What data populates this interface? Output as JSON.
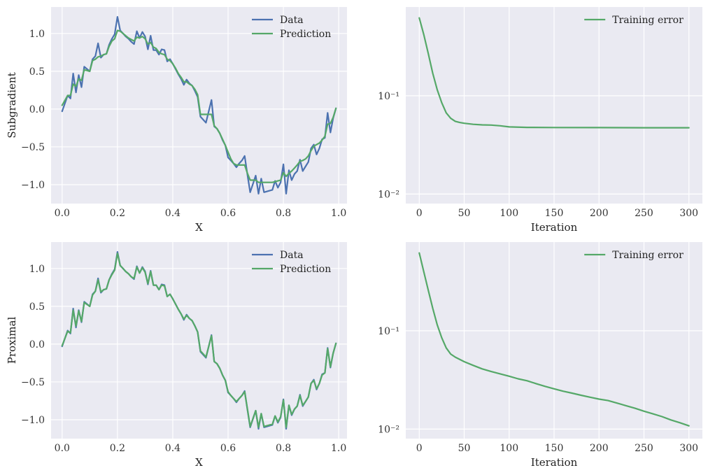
{
  "colors": {
    "background": "#eaeaf2",
    "grid": "#ffffff",
    "data": "#4c72b0",
    "prediction": "#55a868",
    "training": "#55a868"
  },
  "chart_data": [
    {
      "type": "line",
      "panel": "top-left",
      "xlabel": "X",
      "ylabel": "Subgradient",
      "xlim": [
        -0.04,
        1.03
      ],
      "ylim": [
        -1.25,
        1.35
      ],
      "xticks": [
        0.0,
        0.2,
        0.4,
        0.6,
        0.8,
        1.0
      ],
      "xtick_labels": [
        "0.0",
        "0.2",
        "0.4",
        "0.6",
        "0.8",
        "1.0"
      ],
      "yticks": [
        -1.0,
        -0.5,
        0.0,
        0.5,
        1.0
      ],
      "ytick_labels": [
        "−1.0",
        "−0.5",
        "0.0",
        "0.5",
        "1.0"
      ],
      "legend": "top-right",
      "grid": true,
      "series": [
        {
          "name": "Data",
          "color": "#4c72b0",
          "x": [
            0.0,
            0.02,
            0.03,
            0.04,
            0.05,
            0.06,
            0.07,
            0.08,
            0.1,
            0.11,
            0.12,
            0.13,
            0.14,
            0.15,
            0.16,
            0.17,
            0.18,
            0.19,
            0.2,
            0.21,
            0.22,
            0.23,
            0.24,
            0.25,
            0.26,
            0.27,
            0.28,
            0.29,
            0.3,
            0.31,
            0.32,
            0.33,
            0.34,
            0.35,
            0.36,
            0.37,
            0.38,
            0.39,
            0.4,
            0.41,
            0.42,
            0.43,
            0.44,
            0.45,
            0.46,
            0.47,
            0.48,
            0.49,
            0.5,
            0.52,
            0.54,
            0.55,
            0.56,
            0.57,
            0.58,
            0.59,
            0.6,
            0.61,
            0.62,
            0.63,
            0.64,
            0.65,
            0.66,
            0.67,
            0.68,
            0.7,
            0.71,
            0.72,
            0.73,
            0.74,
            0.75,
            0.76,
            0.77,
            0.78,
            0.79,
            0.8,
            0.81,
            0.82,
            0.83,
            0.84,
            0.85,
            0.86,
            0.87,
            0.88,
            0.89,
            0.9,
            0.91,
            0.92,
            0.93,
            0.94,
            0.95,
            0.96,
            0.97,
            0.98,
            0.99
          ],
          "y": [
            -0.03,
            0.18,
            0.14,
            0.47,
            0.22,
            0.45,
            0.29,
            0.56,
            0.5,
            0.66,
            0.7,
            0.87,
            0.68,
            0.72,
            0.73,
            0.85,
            0.93,
            0.99,
            1.22,
            1.04,
            1.0,
            0.96,
            0.93,
            0.89,
            0.86,
            1.03,
            0.94,
            1.02,
            0.96,
            0.79,
            0.97,
            0.78,
            0.78,
            0.72,
            0.79,
            0.78,
            0.63,
            0.66,
            0.6,
            0.53,
            0.46,
            0.4,
            0.32,
            0.39,
            0.34,
            0.31,
            0.24,
            0.16,
            -0.1,
            -0.18,
            0.12,
            -0.23,
            -0.26,
            -0.32,
            -0.41,
            -0.48,
            -0.64,
            -0.68,
            -0.72,
            -0.77,
            -0.72,
            -0.68,
            -0.62,
            -0.87,
            -1.1,
            -0.88,
            -1.12,
            -0.92,
            -1.1,
            -1.09,
            -1.08,
            -1.07,
            -0.95,
            -1.04,
            -0.97,
            -0.73,
            -1.12,
            -0.81,
            -0.94,
            -0.86,
            -0.82,
            -0.67,
            -0.82,
            -0.76,
            -0.7,
            -0.52,
            -0.47,
            -0.6,
            -0.52,
            -0.4,
            -0.38,
            -0.05,
            -0.31,
            -0.12,
            0.01
          ]
        },
        {
          "name": "Prediction",
          "color": "#55a868",
          "x": [
            0.0,
            0.02,
            0.03,
            0.04,
            0.05,
            0.06,
            0.07,
            0.08,
            0.1,
            0.11,
            0.12,
            0.13,
            0.14,
            0.15,
            0.16,
            0.17,
            0.18,
            0.19,
            0.2,
            0.21,
            0.22,
            0.23,
            0.24,
            0.25,
            0.26,
            0.27,
            0.28,
            0.29,
            0.3,
            0.31,
            0.32,
            0.33,
            0.34,
            0.35,
            0.36,
            0.37,
            0.38,
            0.39,
            0.4,
            0.41,
            0.42,
            0.43,
            0.44,
            0.45,
            0.46,
            0.47,
            0.48,
            0.49,
            0.5,
            0.52,
            0.54,
            0.55,
            0.56,
            0.57,
            0.58,
            0.59,
            0.6,
            0.61,
            0.62,
            0.63,
            0.64,
            0.65,
            0.66,
            0.67,
            0.68,
            0.7,
            0.71,
            0.72,
            0.73,
            0.74,
            0.75,
            0.76,
            0.77,
            0.78,
            0.79,
            0.8,
            0.81,
            0.82,
            0.83,
            0.84,
            0.85,
            0.86,
            0.87,
            0.88,
            0.89,
            0.9,
            0.91,
            0.92,
            0.93,
            0.94,
            0.95,
            0.96,
            0.97,
            0.98,
            0.99
          ],
          "y": [
            0.05,
            0.18,
            0.18,
            0.33,
            0.3,
            0.4,
            0.38,
            0.52,
            0.5,
            0.64,
            0.66,
            0.69,
            0.7,
            0.72,
            0.73,
            0.83,
            0.9,
            0.93,
            1.04,
            1.03,
            1.0,
            0.97,
            0.94,
            0.92,
            0.9,
            0.95,
            0.94,
            0.96,
            0.93,
            0.86,
            0.88,
            0.82,
            0.8,
            0.75,
            0.73,
            0.72,
            0.66,
            0.64,
            0.6,
            0.54,
            0.47,
            0.42,
            0.36,
            0.36,
            0.33,
            0.31,
            0.26,
            0.19,
            -0.07,
            -0.07,
            -0.07,
            -0.22,
            -0.26,
            -0.32,
            -0.4,
            -0.48,
            -0.57,
            -0.66,
            -0.72,
            -0.74,
            -0.74,
            -0.74,
            -0.74,
            -0.85,
            -0.94,
            -0.94,
            -0.97,
            -0.97,
            -0.97,
            -0.97,
            -0.97,
            -0.97,
            -0.96,
            -0.95,
            -0.94,
            -0.84,
            -0.89,
            -0.85,
            -0.82,
            -0.78,
            -0.74,
            -0.69,
            -0.68,
            -0.66,
            -0.62,
            -0.55,
            -0.49,
            -0.47,
            -0.45,
            -0.41,
            -0.36,
            -0.2,
            -0.19,
            -0.11,
            0.01
          ]
        }
      ]
    },
    {
      "type": "line",
      "panel": "top-right",
      "xlabel": "Iteration",
      "ylabel": "",
      "yscale": "log",
      "xlim": [
        -15,
        315
      ],
      "ylim": [
        0.008,
        0.8
      ],
      "xticks": [
        0,
        50,
        100,
        150,
        200,
        250,
        300
      ],
      "xtick_labels": [
        "0",
        "50",
        "100",
        "150",
        "200",
        "250",
        "300"
      ],
      "yticks": [
        0.01,
        0.1
      ],
      "ytick_labels": [
        "10⁻²",
        "10⁻¹"
      ],
      "legend": "top-right",
      "grid": true,
      "series": [
        {
          "name": "Training error",
          "color": "#55a868",
          "x": [
            0,
            5,
            10,
            15,
            20,
            25,
            30,
            35,
            40,
            45,
            50,
            60,
            70,
            80,
            90,
            100,
            120,
            150,
            200,
            250,
            300
          ],
          "y": [
            0.62,
            0.42,
            0.27,
            0.17,
            0.115,
            0.085,
            0.067,
            0.059,
            0.055,
            0.0535,
            0.0525,
            0.0512,
            0.0506,
            0.0503,
            0.0495,
            0.0482,
            0.0477,
            0.0475,
            0.0474,
            0.0473,
            0.0473
          ]
        }
      ]
    },
    {
      "type": "line",
      "panel": "bottom-left",
      "xlabel": "X",
      "ylabel": "Proximal",
      "xlim": [
        -0.04,
        1.03
      ],
      "ylim": [
        -1.25,
        1.35
      ],
      "xticks": [
        0.0,
        0.2,
        0.4,
        0.6,
        0.8,
        1.0
      ],
      "xtick_labels": [
        "0.0",
        "0.2",
        "0.4",
        "0.6",
        "0.8",
        "1.0"
      ],
      "yticks": [
        -1.0,
        -0.5,
        0.0,
        0.5,
        1.0
      ],
      "ytick_labels": [
        "−1.0",
        "−0.5",
        "0.0",
        "0.5",
        "1.0"
      ],
      "legend": "top-right",
      "grid": true,
      "series": [
        {
          "name": "Data",
          "color": "#4c72b0",
          "x": [
            0.0,
            0.02,
            0.03,
            0.04,
            0.05,
            0.06,
            0.07,
            0.08,
            0.1,
            0.11,
            0.12,
            0.13,
            0.14,
            0.15,
            0.16,
            0.17,
            0.18,
            0.19,
            0.2,
            0.21,
            0.22,
            0.23,
            0.24,
            0.25,
            0.26,
            0.27,
            0.28,
            0.29,
            0.3,
            0.31,
            0.32,
            0.33,
            0.34,
            0.35,
            0.36,
            0.37,
            0.38,
            0.39,
            0.4,
            0.41,
            0.42,
            0.43,
            0.44,
            0.45,
            0.46,
            0.47,
            0.48,
            0.49,
            0.5,
            0.52,
            0.54,
            0.55,
            0.56,
            0.57,
            0.58,
            0.59,
            0.6,
            0.61,
            0.62,
            0.63,
            0.64,
            0.65,
            0.66,
            0.67,
            0.68,
            0.7,
            0.71,
            0.72,
            0.73,
            0.74,
            0.75,
            0.76,
            0.77,
            0.78,
            0.79,
            0.8,
            0.81,
            0.82,
            0.83,
            0.84,
            0.85,
            0.86,
            0.87,
            0.88,
            0.89,
            0.9,
            0.91,
            0.92,
            0.93,
            0.94,
            0.95,
            0.96,
            0.97,
            0.98,
            0.99
          ],
          "y": [
            -0.03,
            0.18,
            0.14,
            0.47,
            0.22,
            0.45,
            0.29,
            0.56,
            0.5,
            0.66,
            0.7,
            0.87,
            0.68,
            0.72,
            0.73,
            0.85,
            0.93,
            0.99,
            1.22,
            1.04,
            1.0,
            0.96,
            0.93,
            0.89,
            0.86,
            1.03,
            0.94,
            1.02,
            0.96,
            0.79,
            0.97,
            0.78,
            0.78,
            0.72,
            0.79,
            0.78,
            0.63,
            0.66,
            0.6,
            0.53,
            0.46,
            0.4,
            0.32,
            0.39,
            0.34,
            0.31,
            0.24,
            0.16,
            -0.1,
            -0.18,
            0.12,
            -0.23,
            -0.26,
            -0.32,
            -0.41,
            -0.48,
            -0.64,
            -0.68,
            -0.72,
            -0.77,
            -0.72,
            -0.68,
            -0.62,
            -0.87,
            -1.1,
            -0.88,
            -1.12,
            -0.92,
            -1.1,
            -1.09,
            -1.08,
            -1.07,
            -0.95,
            -1.04,
            -0.97,
            -0.73,
            -1.12,
            -0.81,
            -0.94,
            -0.86,
            -0.82,
            -0.67,
            -0.82,
            -0.76,
            -0.7,
            -0.52,
            -0.47,
            -0.6,
            -0.52,
            -0.4,
            -0.38,
            -0.05,
            -0.31,
            -0.12,
            0.01
          ]
        },
        {
          "name": "Prediction",
          "color": "#55a868",
          "x": [
            0.0,
            0.02,
            0.03,
            0.04,
            0.05,
            0.06,
            0.07,
            0.08,
            0.1,
            0.11,
            0.12,
            0.13,
            0.14,
            0.15,
            0.16,
            0.17,
            0.18,
            0.19,
            0.2,
            0.21,
            0.22,
            0.23,
            0.24,
            0.25,
            0.26,
            0.27,
            0.28,
            0.29,
            0.3,
            0.31,
            0.32,
            0.33,
            0.34,
            0.35,
            0.36,
            0.37,
            0.38,
            0.39,
            0.4,
            0.41,
            0.42,
            0.43,
            0.44,
            0.45,
            0.46,
            0.47,
            0.48,
            0.49,
            0.5,
            0.52,
            0.54,
            0.55,
            0.56,
            0.57,
            0.58,
            0.59,
            0.6,
            0.61,
            0.62,
            0.63,
            0.64,
            0.65,
            0.66,
            0.67,
            0.68,
            0.7,
            0.71,
            0.72,
            0.73,
            0.74,
            0.75,
            0.76,
            0.77,
            0.78,
            0.79,
            0.8,
            0.81,
            0.82,
            0.83,
            0.84,
            0.85,
            0.86,
            0.87,
            0.88,
            0.89,
            0.9,
            0.91,
            0.92,
            0.93,
            0.94,
            0.95,
            0.96,
            0.97,
            0.98,
            0.99
          ],
          "y": [
            -0.02,
            0.17,
            0.15,
            0.45,
            0.24,
            0.44,
            0.3,
            0.55,
            0.5,
            0.65,
            0.7,
            0.85,
            0.69,
            0.72,
            0.73,
            0.85,
            0.92,
            0.98,
            1.2,
            1.04,
            1.0,
            0.96,
            0.93,
            0.89,
            0.87,
            1.02,
            0.94,
            1.01,
            0.95,
            0.8,
            0.96,
            0.78,
            0.78,
            0.72,
            0.78,
            0.77,
            0.63,
            0.66,
            0.6,
            0.53,
            0.46,
            0.4,
            0.33,
            0.38,
            0.34,
            0.31,
            0.24,
            0.16,
            -0.09,
            -0.17,
            0.11,
            -0.23,
            -0.26,
            -0.32,
            -0.41,
            -0.48,
            -0.63,
            -0.68,
            -0.72,
            -0.76,
            -0.72,
            -0.68,
            -0.63,
            -0.86,
            -1.09,
            -0.88,
            -1.1,
            -0.92,
            -1.09,
            -1.08,
            -1.07,
            -1.06,
            -0.95,
            -1.03,
            -0.96,
            -0.74,
            -1.1,
            -0.81,
            -0.93,
            -0.86,
            -0.82,
            -0.68,
            -0.81,
            -0.76,
            -0.7,
            -0.52,
            -0.48,
            -0.59,
            -0.52,
            -0.41,
            -0.38,
            -0.06,
            -0.3,
            -0.12,
            0.01
          ]
        }
      ]
    },
    {
      "type": "line",
      "panel": "bottom-right",
      "xlabel": "Iteration",
      "ylabel": "",
      "yscale": "log",
      "xlim": [
        -15,
        315
      ],
      "ylim": [
        0.008,
        0.8
      ],
      "xticks": [
        0,
        50,
        100,
        150,
        200,
        250,
        300
      ],
      "xtick_labels": [
        "0",
        "50",
        "100",
        "150",
        "200",
        "250",
        "300"
      ],
      "yticks": [
        0.01,
        0.1
      ],
      "ytick_labels": [
        "10⁻²",
        "10⁻¹"
      ],
      "legend": "top-right",
      "grid": true,
      "series": [
        {
          "name": "Training error",
          "color": "#55a868",
          "x": [
            0,
            5,
            10,
            15,
            20,
            25,
            30,
            35,
            40,
            50,
            60,
            70,
            80,
            90,
            100,
            110,
            120,
            130,
            140,
            150,
            160,
            170,
            180,
            190,
            200,
            210,
            220,
            230,
            240,
            250,
            260,
            270,
            280,
            290,
            300
          ],
          "y": [
            0.62,
            0.4,
            0.26,
            0.17,
            0.115,
            0.085,
            0.067,
            0.058,
            0.054,
            0.0485,
            0.0445,
            0.041,
            0.0385,
            0.0365,
            0.0345,
            0.0325,
            0.031,
            0.029,
            0.0272,
            0.0257,
            0.0243,
            0.0232,
            0.0221,
            0.0211,
            0.0202,
            0.0195,
            0.0184,
            0.0173,
            0.0163,
            0.0152,
            0.0143,
            0.0134,
            0.0124,
            0.0116,
            0.0108
          ]
        }
      ]
    }
  ]
}
